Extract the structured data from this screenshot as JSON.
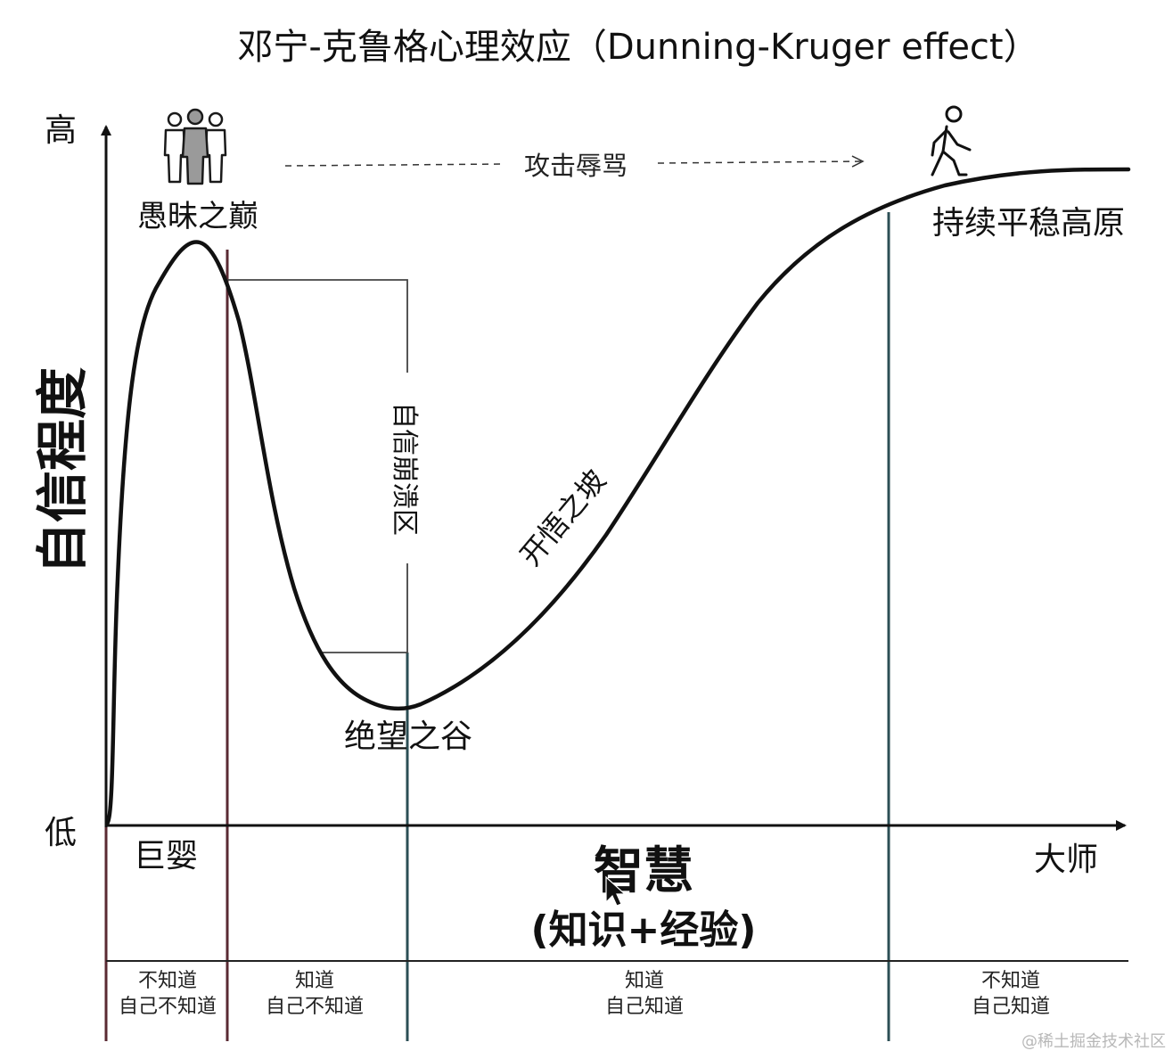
{
  "title": "邓宁-克鲁格心理效应（Dunning-Kruger effect）",
  "y_axis": {
    "label": "自信程度",
    "high_label": "高",
    "low_label": "低"
  },
  "x_axis": {
    "label_main": "智慧",
    "label_sub": "(知识+经验)",
    "start_label": "巨婴",
    "end_label": "大师"
  },
  "annotations": {
    "peak": "愚昧之巅",
    "collapse": "自信崩溃区",
    "valley": "绝望之谷",
    "slope": "开悟之坡",
    "plateau": "持续平稳高原",
    "attack": "攻击辱骂"
  },
  "stages": [
    {
      "line1": "不知道",
      "line2": "自己不知道"
    },
    {
      "line1": "知道",
      "line2": "自己不知道"
    },
    {
      "line1": "知道",
      "line2": "自己知道"
    },
    {
      "line1": "不知道",
      "line2": "自己知道"
    }
  ],
  "icons": {
    "crowd": "group-of-people-icon",
    "walker": "walking-person-icon"
  },
  "colors": {
    "curve": "#111111",
    "divider_1": "#5a2a33",
    "divider_2": "#2c4f55",
    "divider_3": "#2c4f55",
    "crowd_highlight": "#9a9a9a"
  },
  "watermark": "@稀土掘金技术社区"
}
